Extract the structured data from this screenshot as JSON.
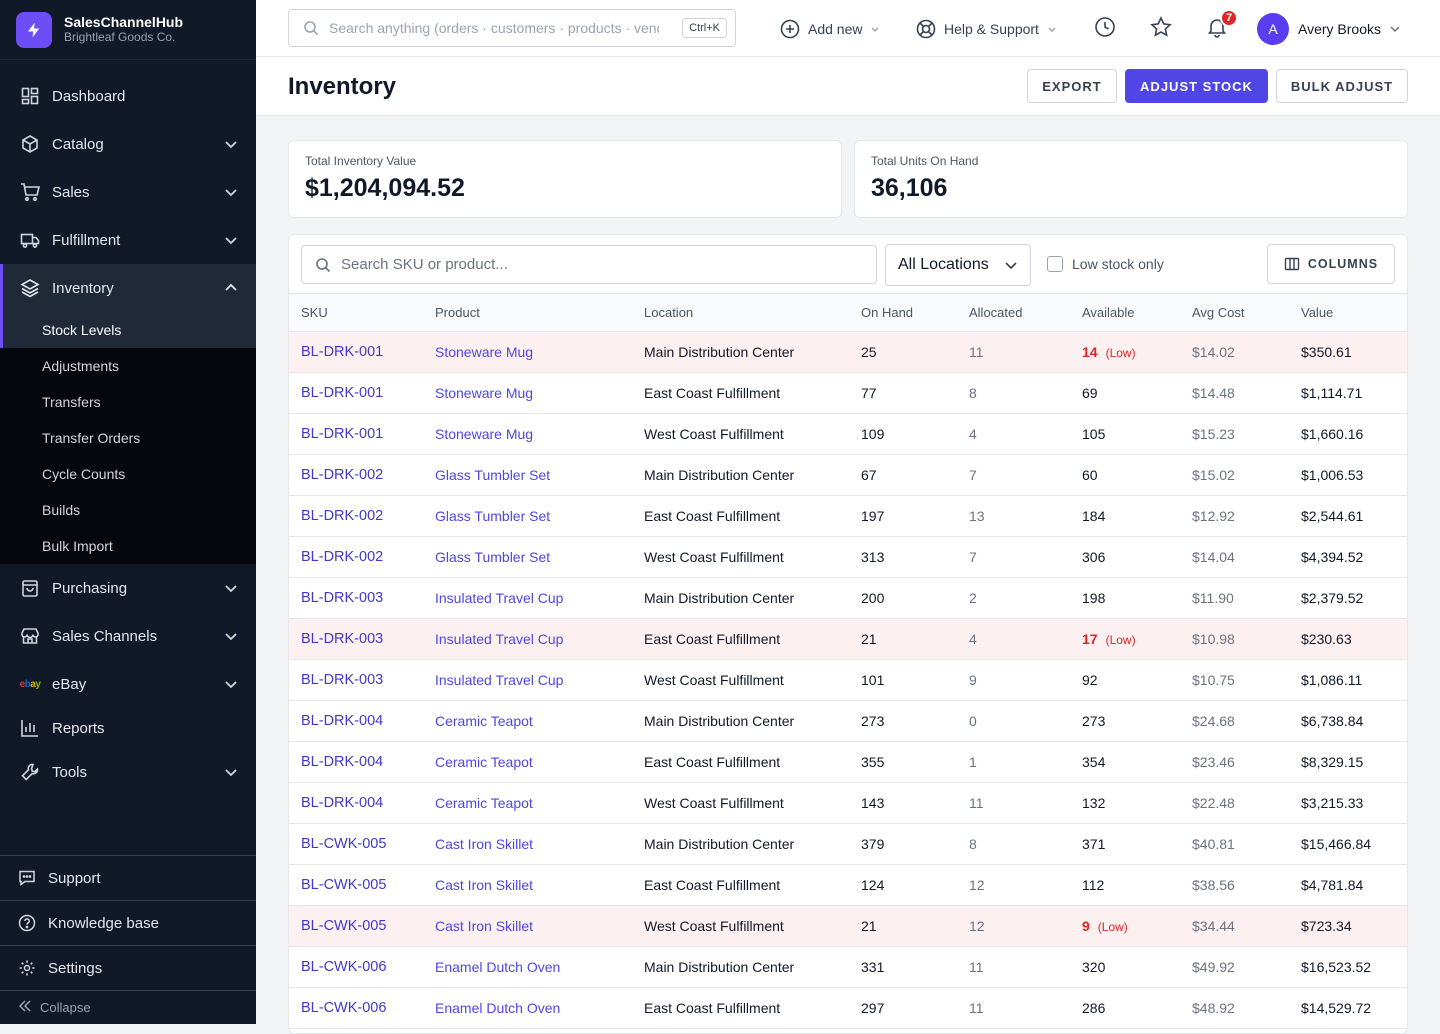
{
  "brand": {
    "name": "SalesChannelHub",
    "company": "Brightleaf Goods Co."
  },
  "sidebar": {
    "items": [
      {
        "label": "Dashboard",
        "icon": "dashboard-icon"
      },
      {
        "label": "Catalog",
        "icon": "cube-icon"
      },
      {
        "label": "Sales",
        "icon": "cart-icon"
      },
      {
        "label": "Fulfillment",
        "icon": "truck-icon"
      },
      {
        "label": "Inventory",
        "icon": "layers-icon"
      },
      {
        "label": "Purchasing",
        "icon": "bag-icon"
      },
      {
        "label": "Sales Channels",
        "icon": "store-icon"
      },
      {
        "label": "eBay",
        "icon": "ebay-logo"
      },
      {
        "label": "Reports",
        "icon": "bar-chart-icon"
      },
      {
        "label": "Tools",
        "icon": "wrench-icon"
      }
    ],
    "ebay_logo": "ebay",
    "inventory_sub": [
      "Stock Levels",
      "Adjustments",
      "Transfers",
      "Transfer Orders",
      "Cycle Counts",
      "Builds",
      "Bulk Import"
    ],
    "bottom": {
      "support": "Support",
      "knowledge": "Knowledge base",
      "settings": "Settings",
      "collapse": "Collapse"
    }
  },
  "topbar": {
    "search_placeholder": "Search anything (orders · customers · products · vendors)",
    "shortcut": "Ctrl+K",
    "add_new": "Add new",
    "help": "Help & Support",
    "notifications_count": "7",
    "user_initial": "A",
    "user_name": "Avery Brooks"
  },
  "page": {
    "title": "Inventory",
    "export": "EXPORT",
    "adjust": "ADJUST STOCK",
    "bulk": "BULK ADJUST"
  },
  "stats": {
    "value_label": "Total Inventory Value",
    "value": "$1,204,094.52",
    "units_label": "Total Units On Hand",
    "units": "36,106"
  },
  "filters": {
    "search_placeholder": "Search SKU or product...",
    "location": "All Locations",
    "low_stock": "Low stock only",
    "columns": "COLUMNS"
  },
  "colors": {
    "accent": "#4f46e5",
    "sidebar": "#111827",
    "low": "#dc2626"
  },
  "table": {
    "headers": [
      "SKU",
      "Product",
      "Location",
      "On Hand",
      "Allocated",
      "Available",
      "Avg Cost",
      "Value"
    ],
    "low_label": "(Low)",
    "rows": [
      {
        "sku": "BL-DRK-001",
        "product": "Stoneware Mug",
        "location": "Main Distribution Center",
        "on_hand": "25",
        "allocated": "11",
        "available": "14",
        "low": true,
        "avg_cost": "$14.02",
        "value": "$350.61"
      },
      {
        "sku": "BL-DRK-001",
        "product": "Stoneware Mug",
        "location": "East Coast Fulfillment",
        "on_hand": "77",
        "allocated": "8",
        "available": "69",
        "low": false,
        "avg_cost": "$14.48",
        "value": "$1,114.71"
      },
      {
        "sku": "BL-DRK-001",
        "product": "Stoneware Mug",
        "location": "West Coast Fulfillment",
        "on_hand": "109",
        "allocated": "4",
        "available": "105",
        "low": false,
        "avg_cost": "$15.23",
        "value": "$1,660.16"
      },
      {
        "sku": "BL-DRK-002",
        "product": "Glass Tumbler Set",
        "location": "Main Distribution Center",
        "on_hand": "67",
        "allocated": "7",
        "available": "60",
        "low": false,
        "avg_cost": "$15.02",
        "value": "$1,006.53"
      },
      {
        "sku": "BL-DRK-002",
        "product": "Glass Tumbler Set",
        "location": "East Coast Fulfillment",
        "on_hand": "197",
        "allocated": "13",
        "available": "184",
        "low": false,
        "avg_cost": "$12.92",
        "value": "$2,544.61"
      },
      {
        "sku": "BL-DRK-002",
        "product": "Glass Tumbler Set",
        "location": "West Coast Fulfillment",
        "on_hand": "313",
        "allocated": "7",
        "available": "306",
        "low": false,
        "avg_cost": "$14.04",
        "value": "$4,394.52"
      },
      {
        "sku": "BL-DRK-003",
        "product": "Insulated Travel Cup",
        "location": "Main Distribution Center",
        "on_hand": "200",
        "allocated": "2",
        "available": "198",
        "low": false,
        "avg_cost": "$11.90",
        "value": "$2,379.52"
      },
      {
        "sku": "BL-DRK-003",
        "product": "Insulated Travel Cup",
        "location": "East Coast Fulfillment",
        "on_hand": "21",
        "allocated": "4",
        "available": "17",
        "low": true,
        "avg_cost": "$10.98",
        "value": "$230.63"
      },
      {
        "sku": "BL-DRK-003",
        "product": "Insulated Travel Cup",
        "location": "West Coast Fulfillment",
        "on_hand": "101",
        "allocated": "9",
        "available": "92",
        "low": false,
        "avg_cost": "$10.75",
        "value": "$1,086.11"
      },
      {
        "sku": "BL-DRK-004",
        "product": "Ceramic Teapot",
        "location": "Main Distribution Center",
        "on_hand": "273",
        "allocated": "0",
        "available": "273",
        "low": false,
        "avg_cost": "$24.68",
        "value": "$6,738.84"
      },
      {
        "sku": "BL-DRK-004",
        "product": "Ceramic Teapot",
        "location": "East Coast Fulfillment",
        "on_hand": "355",
        "allocated": "1",
        "available": "354",
        "low": false,
        "avg_cost": "$23.46",
        "value": "$8,329.15"
      },
      {
        "sku": "BL-DRK-004",
        "product": "Ceramic Teapot",
        "location": "West Coast Fulfillment",
        "on_hand": "143",
        "allocated": "11",
        "available": "132",
        "low": false,
        "avg_cost": "$22.48",
        "value": "$3,215.33"
      },
      {
        "sku": "BL-CWK-005",
        "product": "Cast Iron Skillet",
        "location": "Main Distribution Center",
        "on_hand": "379",
        "allocated": "8",
        "available": "371",
        "low": false,
        "avg_cost": "$40.81",
        "value": "$15,466.84"
      },
      {
        "sku": "BL-CWK-005",
        "product": "Cast Iron Skillet",
        "location": "East Coast Fulfillment",
        "on_hand": "124",
        "allocated": "12",
        "available": "112",
        "low": false,
        "avg_cost": "$38.56",
        "value": "$4,781.84"
      },
      {
        "sku": "BL-CWK-005",
        "product": "Cast Iron Skillet",
        "location": "West Coast Fulfillment",
        "on_hand": "21",
        "allocated": "12",
        "available": "9",
        "low": true,
        "avg_cost": "$34.44",
        "value": "$723.34"
      },
      {
        "sku": "BL-CWK-006",
        "product": "Enamel Dutch Oven",
        "location": "Main Distribution Center",
        "on_hand": "331",
        "allocated": "11",
        "available": "320",
        "low": false,
        "avg_cost": "$49.92",
        "value": "$16,523.52"
      },
      {
        "sku": "BL-CWK-006",
        "product": "Enamel Dutch Oven",
        "location": "East Coast Fulfillment",
        "on_hand": "297",
        "allocated": "11",
        "available": "286",
        "low": false,
        "avg_cost": "$48.92",
        "value": "$14,529.72"
      }
    ]
  }
}
